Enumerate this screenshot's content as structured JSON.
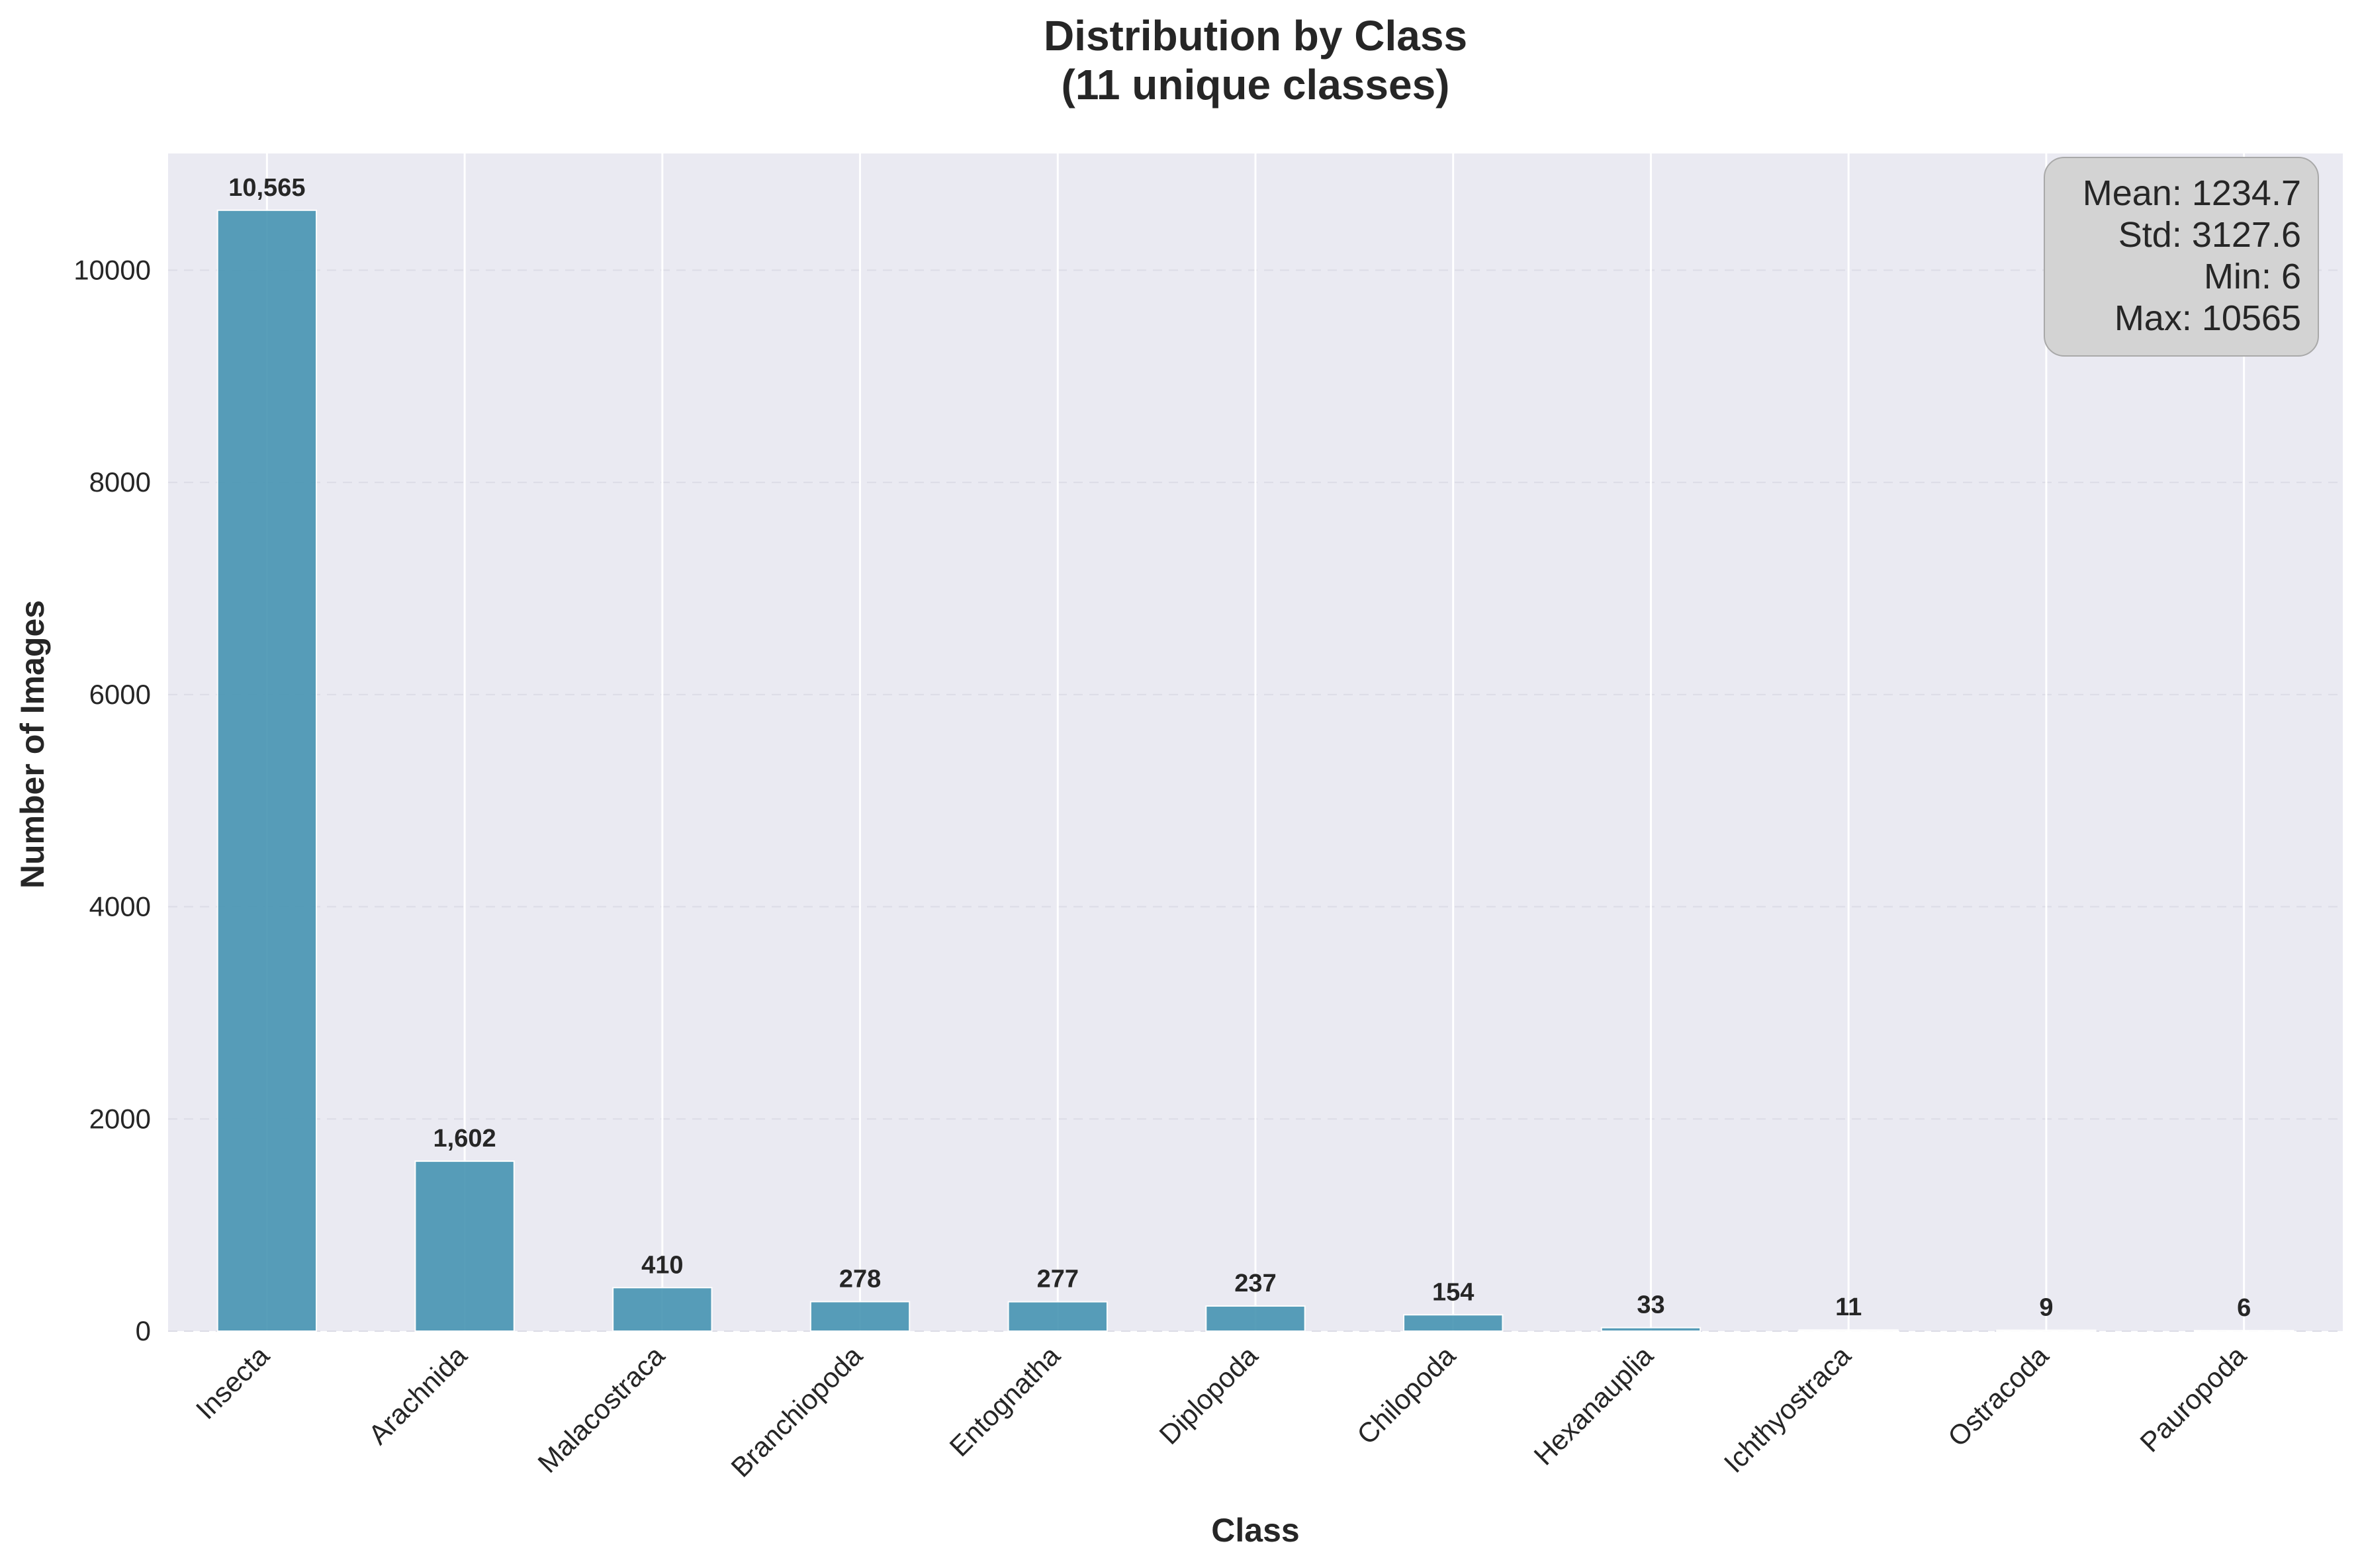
{
  "chart_data": {
    "type": "bar",
    "title": "Distribution by Class",
    "subtitle": "(11 unique classes)",
    "xlabel": "Class",
    "ylabel": "Number of Images",
    "categories": [
      "Insecta",
      "Arachnida",
      "Malacostraca",
      "Branchiopoda",
      "Entognatha",
      "Diplopoda",
      "Chilopoda",
      "Hexanauplia",
      "Ichthyostraca",
      "Ostracoda",
      "Pauropoda"
    ],
    "values": [
      10565,
      1602,
      410,
      278,
      277,
      237,
      154,
      33,
      11,
      9,
      6
    ],
    "value_labels": [
      "10,565",
      "1,602",
      "410",
      "278",
      "277",
      "237",
      "154",
      "33",
      "11",
      "9",
      "6"
    ],
    "ylim": [
      0,
      11100
    ],
    "yticks": [
      0,
      2000,
      4000,
      6000,
      8000,
      10000
    ],
    "grid": true,
    "bar_color": "#4a96b4",
    "background_color": "#eaeaf2",
    "stats_box": {
      "placement": "top-right",
      "lines": [
        "Mean: 1234.7",
        "Std: 3127.6",
        "Min: 6",
        "Max: 10565"
      ]
    }
  }
}
